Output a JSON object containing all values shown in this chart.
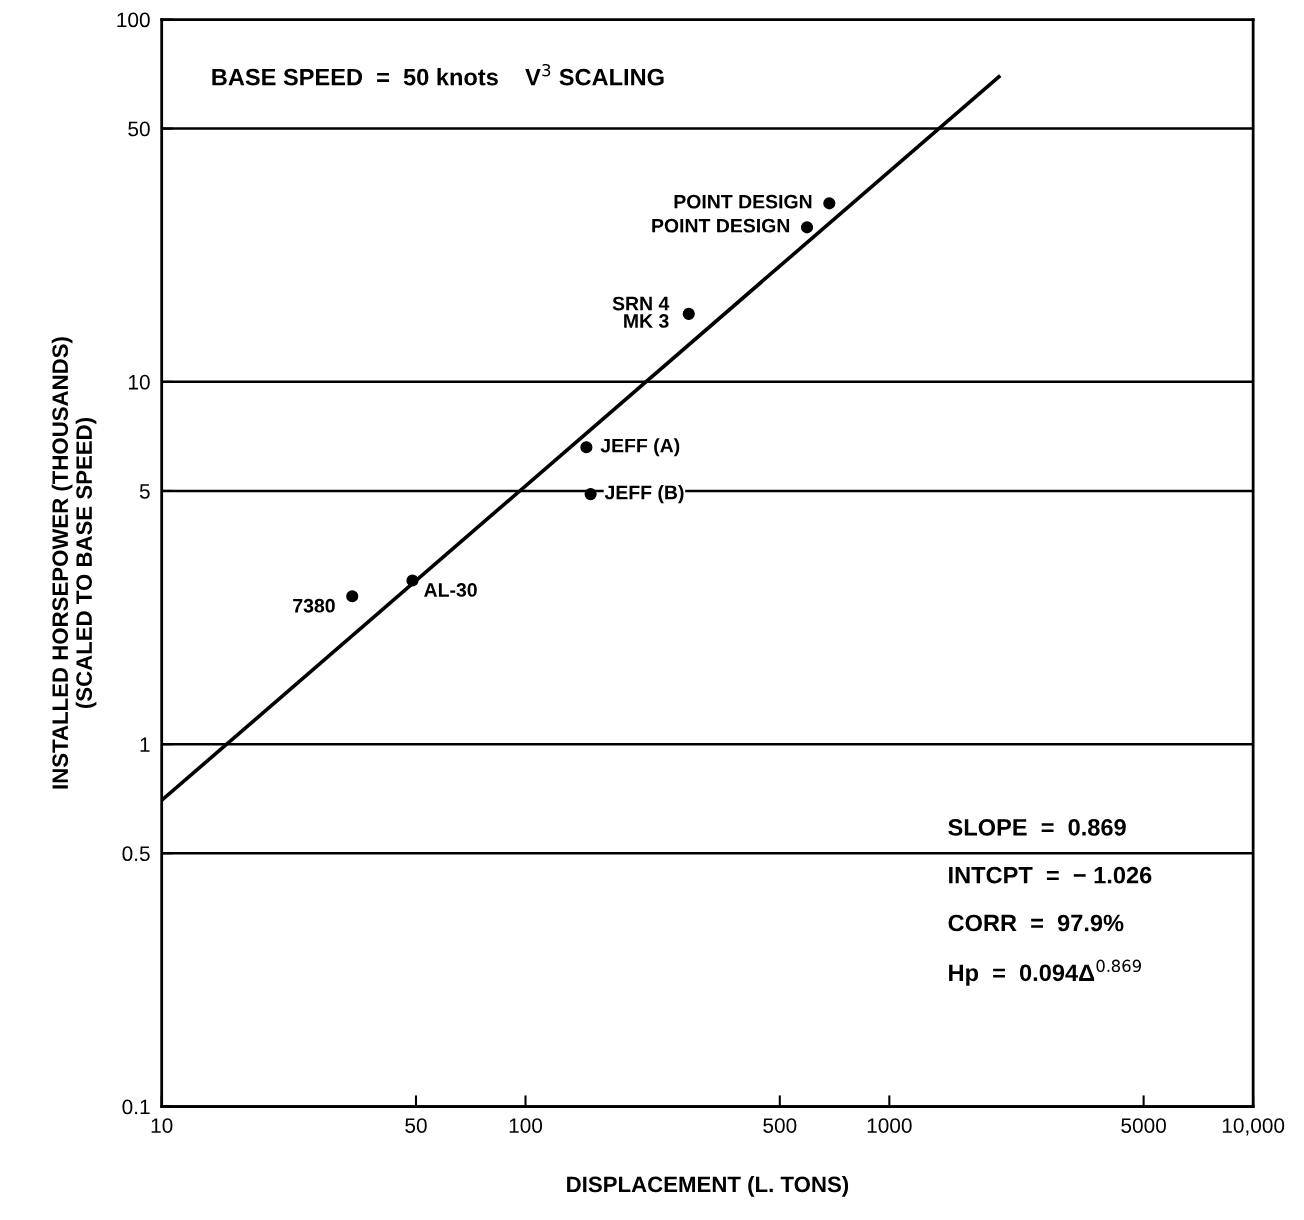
{
  "chart_data": {
    "type": "scatter",
    "xlabel": "DISPLACEMENT (L. TONS)",
    "ylabel": "INSTALLED HORSEPOWER (THOUSANDS)\n(SCALED TO BASE SPEED)",
    "series": [
      {
        "color": "#000000",
        "marker": "circle",
        "x": [
          684,
          594,
          281,
          147,
          151,
          48.9,
          33.4
        ],
        "values": [
          31.1,
          26.7,
          15.4,
          6.6,
          4.9,
          2.83,
          2.56
        ]
      },
      {
        "type": "line",
        "color": "#000000",
        "marker": "none",
        "line_style": "solid",
        "x": [
          10,
          2000
        ],
        "values": [
          0.7,
          69.5
        ]
      }
    ],
    "annotations": [
      "BASE SPEED  =  50 knots    V$^{3}$ SCALING",
      "SLOPE  =  0.869",
      "INTCPT  =  − 1.026",
      "CORR  =  97.9%",
      "Hp  =  0.094Δ$^{0.869}$",
      {
        "text": "POINT DESIGN",
        "x": 684,
        "y": 31.1
      },
      {
        "text": "POINT DESIGN",
        "x": 594,
        "y": 26.7
      },
      {
        "text": "SRN 4\nMK 3",
        "x": 281,
        "y": 15.4
      },
      {
        "text": "JEFF (A)",
        "x": 147,
        "y": 6.6
      },
      {
        "text": "JEFF (B)",
        "x": 151,
        "y": 4.9
      },
      {
        "text": "AL-30",
        "x": 48.9,
        "y": 2.83
      },
      {
        "text": "7380",
        "x": 33.4,
        "y": 2.56
      }
    ],
    "log": "xy",
    "xlim": [
      10,
      10000
    ],
    "ylim": [
      0.1,
      100
    ],
    "xticks": [
      10,
      50,
      100,
      500,
      1000,
      5000,
      {
        "value": 10000,
        "label": "10,000"
      }
    ],
    "yticks": [
      0.1,
      0.5,
      1,
      5,
      10,
      50,
      100
    ],
    "grid": "y",
    "legend": false
  }
}
